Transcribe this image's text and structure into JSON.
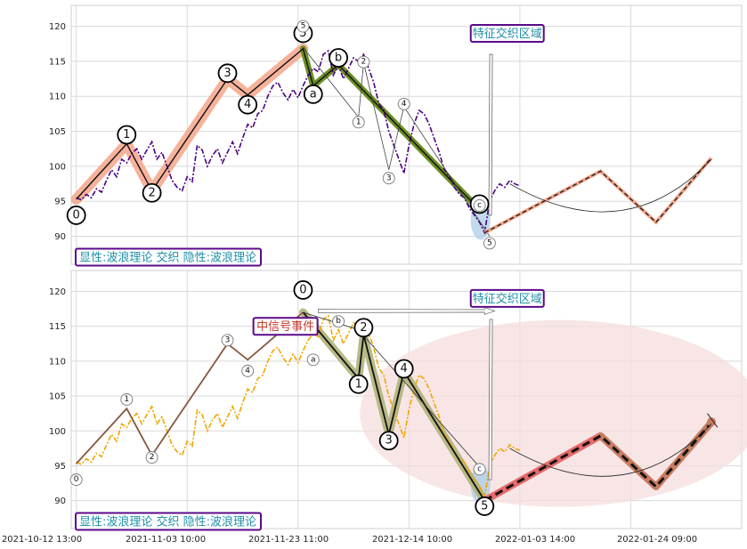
{
  "chart_data": {
    "type": "line",
    "x_tick_labels": [
      "2021-10-12 13:00",
      "2021-11-03 10:00",
      "2021-11-23 11:00",
      "2021-12-14 10:00",
      "2022-01-03 14:00",
      "2022-01-24 09:00"
    ],
    "y_tick_labels": [
      "90",
      "95",
      "100",
      "105",
      "110",
      "115",
      "120"
    ],
    "ylim": [
      86,
      123
    ],
    "grid": true,
    "colors": {
      "price_top": "#4b0082",
      "price_bottom": "#f0a500",
      "highlight_salmon": "#f4a58a",
      "highlight_olive": "#6b8e23",
      "highlight_pale_olive": "#b0b37a",
      "forecast_red": "#e66a6a",
      "forecast_brown": "#c87c60",
      "box_border": "#5a0a8a",
      "box_text": "#1f8fa8",
      "box_text_red": "#c0392b",
      "ellipse_fill": "#f6dede",
      "blue_blob": "#a6cbe6"
    },
    "panels": [
      {
        "annotation_label": "显性:波浪理论 交织 隐性:波浪理论",
        "region_label": "特征交织区域",
        "price_series": [
          [
            1,
            95.5
          ],
          [
            2,
            95.2
          ],
          [
            3,
            96
          ],
          [
            4,
            95.5
          ],
          [
            5,
            96.8
          ],
          [
            6,
            96.3
          ],
          [
            7,
            98
          ],
          [
            8,
            99.5
          ],
          [
            9,
            98.5
          ],
          [
            10,
            101
          ],
          [
            11,
            100.5
          ],
          [
            12,
            101.8
          ],
          [
            13,
            102.5
          ],
          [
            14,
            101
          ],
          [
            15,
            102.3
          ],
          [
            16,
            103.5
          ],
          [
            17,
            101
          ],
          [
            18,
            102
          ],
          [
            19,
            100
          ],
          [
            20,
            98
          ],
          [
            21,
            97
          ],
          [
            22,
            96.5
          ],
          [
            23,
            98.5
          ],
          [
            24,
            97.8
          ],
          [
            25,
            103
          ],
          [
            26,
            102.3
          ],
          [
            27,
            100
          ],
          [
            28,
            101.5
          ],
          [
            29,
            102.5
          ],
          [
            30,
            100.5
          ],
          [
            31,
            102
          ],
          [
            32,
            103.5
          ],
          [
            33,
            101.8
          ],
          [
            34,
            104
          ],
          [
            35,
            106
          ],
          [
            36,
            105.5
          ],
          [
            37,
            107.5
          ],
          [
            38,
            108
          ],
          [
            39,
            110
          ],
          [
            40,
            111.5
          ],
          [
            41,
            112
          ],
          [
            42,
            110.5
          ],
          [
            43,
            109.5
          ],
          [
            44,
            111
          ],
          [
            45,
            109.8
          ],
          [
            46,
            111.5
          ],
          [
            47,
            113
          ],
          [
            48,
            114
          ],
          [
            49,
            113.5
          ],
          [
            50,
            116
          ],
          [
            51,
            116.5
          ],
          [
            52,
            113
          ],
          [
            53,
            114.5
          ],
          [
            54,
            112.5
          ],
          [
            55,
            114
          ],
          [
            56,
            115.5
          ],
          [
            57,
            115
          ],
          [
            58,
            116
          ],
          [
            59,
            114
          ],
          [
            60,
            112
          ],
          [
            61,
            109
          ],
          [
            62,
            108
          ],
          [
            63,
            105
          ],
          [
            64,
            103
          ],
          [
            65,
            101
          ],
          [
            66,
            99
          ],
          [
            67,
            103
          ],
          [
            68,
            106
          ],
          [
            69,
            108
          ],
          [
            70,
            107.5
          ],
          [
            71,
            106
          ],
          [
            72,
            104
          ],
          [
            73,
            102
          ],
          [
            74,
            99.5
          ],
          [
            75,
            98.5
          ],
          [
            76,
            97
          ],
          [
            77,
            96
          ],
          [
            78,
            95.5
          ],
          [
            79,
            94
          ],
          [
            80,
            93
          ],
          [
            81,
            92
          ],
          [
            82,
            90.5
          ],
          [
            83,
            95
          ],
          [
            84,
            96.5
          ],
          [
            85,
            97.5
          ],
          [
            86,
            97
          ],
          [
            87,
            98
          ],
          [
            88,
            97.5
          ],
          [
            89,
            97.2
          ]
        ],
        "wave_path_main": [
          [
            1,
            95.3
          ],
          [
            11,
            103.2
          ],
          [
            16,
            96.5
          ],
          [
            31,
            112.5
          ],
          [
            35,
            110.2
          ],
          [
            46,
            116.8
          ],
          [
            48,
            111.5
          ],
          [
            53,
            114.5
          ],
          [
            81,
            93.8
          ]
        ],
        "wave_labels": [
          {
            "label": "0",
            "x": 1,
            "y": 93,
            "big": true
          },
          {
            "label": "1",
            "x": 11,
            "y": 104.5,
            "big": true
          },
          {
            "label": "2",
            "x": 16,
            "y": 96.2,
            "big": true
          },
          {
            "label": "3",
            "x": 31,
            "y": 113.3,
            "big": true
          },
          {
            "label": "4",
            "x": 35,
            "y": 108.8,
            "big": true
          },
          {
            "label": "5",
            "x": 46,
            "y": 119,
            "big": true
          },
          {
            "label": "a",
            "x": 48,
            "y": 110.3,
            "big": true
          },
          {
            "label": "b",
            "x": 53,
            "y": 115.5,
            "big": true
          },
          {
            "label": "c",
            "x": 81,
            "y": 94.6,
            "big": true
          },
          {
            "label": "5",
            "x": 46,
            "y": 120,
            "big": false
          },
          {
            "label": "2",
            "x": 58,
            "y": 114.9,
            "big": false
          },
          {
            "label": "1",
            "x": 57,
            "y": 106.3,
            "big": false
          },
          {
            "label": "3",
            "x": 63,
            "y": 98.3,
            "big": false
          },
          {
            "label": "4",
            "x": 66,
            "y": 108.9,
            "big": false
          },
          {
            "label": "5",
            "x": 83,
            "y": 89,
            "big": false
          },
          {
            "label": "c",
            "x": 81,
            "y": 94.4,
            "big": false
          }
        ],
        "forecast": [
          [
            82,
            90.5
          ],
          [
            105,
            99.3
          ],
          [
            116,
            92
          ],
          [
            127,
            101.2
          ]
        ]
      },
      {
        "annotation_label": "显性:波浪理论 交织 隐性:波浪理论",
        "region_label": "特征交织区域",
        "signal_label": "中信号事件",
        "price_series": [
          [
            1,
            95.5
          ],
          [
            2,
            95.2
          ],
          [
            3,
            96
          ],
          [
            4,
            95.5
          ],
          [
            5,
            96.8
          ],
          [
            6,
            96.3
          ],
          [
            7,
            98
          ],
          [
            8,
            99.5
          ],
          [
            9,
            98.5
          ],
          [
            10,
            101
          ],
          [
            11,
            100.5
          ],
          [
            12,
            101.8
          ],
          [
            13,
            102.5
          ],
          [
            14,
            101
          ],
          [
            15,
            102.3
          ],
          [
            16,
            103.5
          ],
          [
            17,
            101
          ],
          [
            18,
            102
          ],
          [
            19,
            100
          ],
          [
            20,
            98
          ],
          [
            21,
            97
          ],
          [
            22,
            96.5
          ],
          [
            23,
            98.5
          ],
          [
            24,
            97.8
          ],
          [
            25,
            103
          ],
          [
            26,
            102.3
          ],
          [
            27,
            100
          ],
          [
            28,
            101.5
          ],
          [
            29,
            102.5
          ],
          [
            30,
            100.5
          ],
          [
            31,
            102
          ],
          [
            32,
            103.5
          ],
          [
            33,
            101.8
          ],
          [
            34,
            104
          ],
          [
            35,
            106
          ],
          [
            36,
            105.5
          ],
          [
            37,
            107.5
          ],
          [
            38,
            108
          ],
          [
            39,
            110
          ],
          [
            40,
            111.5
          ],
          [
            41,
            112
          ],
          [
            42,
            110.5
          ],
          [
            43,
            109.5
          ],
          [
            44,
            111
          ],
          [
            45,
            109.8
          ],
          [
            46,
            111.5
          ],
          [
            47,
            113
          ],
          [
            48,
            114
          ],
          [
            49,
            113.5
          ],
          [
            50,
            116
          ],
          [
            51,
            116.5
          ],
          [
            52,
            113
          ],
          [
            53,
            114.5
          ],
          [
            54,
            112.5
          ],
          [
            55,
            114
          ],
          [
            56,
            115.5
          ],
          [
            57,
            115
          ],
          [
            58,
            116
          ],
          [
            59,
            114
          ],
          [
            60,
            112
          ],
          [
            61,
            109
          ],
          [
            62,
            108
          ],
          [
            63,
            105
          ],
          [
            64,
            103
          ],
          [
            65,
            101
          ],
          [
            66,
            99
          ],
          [
            67,
            103
          ],
          [
            68,
            106
          ],
          [
            69,
            108
          ],
          [
            70,
            107.5
          ],
          [
            71,
            106
          ],
          [
            72,
            104
          ],
          [
            73,
            102
          ],
          [
            74,
            99.5
          ],
          [
            75,
            98.5
          ],
          [
            76,
            97
          ],
          [
            77,
            96
          ],
          [
            78,
            95.5
          ],
          [
            79,
            94
          ],
          [
            80,
            93
          ],
          [
            81,
            92
          ],
          [
            82,
            90.5
          ],
          [
            83,
            95
          ],
          [
            84,
            96.5
          ],
          [
            85,
            97.5
          ],
          [
            86,
            97
          ],
          [
            87,
            98
          ],
          [
            88,
            97.5
          ],
          [
            89,
            97.2
          ]
        ],
        "wave_path_main": [
          [
            46,
            117
          ],
          [
            57,
            107.5
          ],
          [
            58,
            113.8
          ],
          [
            63,
            99.5
          ],
          [
            66,
            108.5
          ],
          [
            82,
            90
          ]
        ],
        "wave_labels": [
          {
            "label": "0",
            "x": 1,
            "y": 93,
            "big": false
          },
          {
            "label": "1",
            "x": 11,
            "y": 104.5,
            "big": false
          },
          {
            "label": "2",
            "x": 16,
            "y": 96.2,
            "big": false
          },
          {
            "label": "3",
            "x": 31,
            "y": 113,
            "big": false
          },
          {
            "label": "4",
            "x": 35,
            "y": 108.6,
            "big": false
          },
          {
            "label": "a",
            "x": 48,
            "y": 110.2,
            "big": false
          },
          {
            "label": "b",
            "x": 53,
            "y": 115.7,
            "big": false
          },
          {
            "label": "c",
            "x": 81,
            "y": 94.5,
            "big": false
          },
          {
            "label": "0",
            "x": 46,
            "y": 120.2,
            "big": true
          },
          {
            "label": "1",
            "x": 57,
            "y": 106.7,
            "big": true
          },
          {
            "label": "2",
            "x": 58,
            "y": 114.8,
            "big": true
          },
          {
            "label": "3",
            "x": 63,
            "y": 98.6,
            "big": true
          },
          {
            "label": "4",
            "x": 66,
            "y": 108.9,
            "big": true
          },
          {
            "label": "5",
            "x": 82,
            "y": 89.2,
            "big": true
          }
        ],
        "forecast": [
          [
            82,
            90
          ],
          [
            105,
            99.3
          ],
          [
            116,
            92
          ],
          [
            127,
            101.2
          ]
        ]
      }
    ]
  }
}
